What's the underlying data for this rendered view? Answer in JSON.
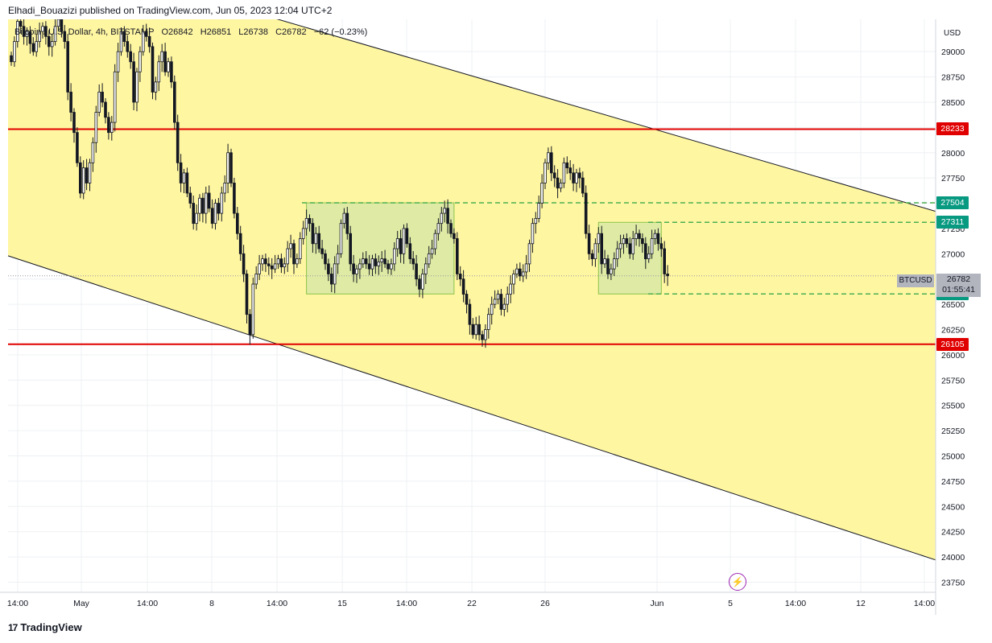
{
  "header": {
    "published_text": "Elhadi_Bouazizi published on TradingView.com, Jun 05, 2023 12:04 UTC+2"
  },
  "legend": {
    "symbol": "Bitcoin / U.S. Dollar, 4h, BITSTAMP",
    "open": "O26842",
    "high": "H26851",
    "low": "L26738",
    "close": "C26782",
    "change": "−62 (−0.23%)"
  },
  "footer": {
    "brand": "TradingView",
    "logo": "tradingview-logo-icon"
  },
  "icons": {
    "alert": "lightning-bolt-icon"
  },
  "colors": {
    "channel_fill": "#fff59d",
    "support_resistance": "#e00000",
    "range_line": "#4caf50",
    "range_box": "#c5e1a5",
    "up_candle": "#131722"
  },
  "chart_data": {
    "type": "candlestick",
    "symbol": "BTCUSD",
    "timeframe": "4h",
    "currency": "USD",
    "ylim": [
      23650,
      29320
    ],
    "y_ticks": [
      23750,
      24000,
      24250,
      24500,
      24750,
      25000,
      25250,
      25500,
      25750,
      26000,
      26250,
      26500,
      26750,
      27000,
      27250,
      27500,
      27750,
      28000,
      28250,
      28500,
      28750,
      29000
    ],
    "x_ticks": [
      "14:00",
      "May",
      "14:00",
      "8",
      "14:00",
      "15",
      "14:00",
      "22",
      "26",
      "Jun",
      "5",
      "14:00",
      "12",
      "14:00"
    ],
    "horizontal_levels": [
      {
        "price": 28233,
        "label": "28233",
        "style": "solid",
        "color": "red"
      },
      {
        "price": 26105,
        "label": "26105",
        "style": "solid",
        "color": "red"
      },
      {
        "price": 27504,
        "label": "27504",
        "style": "dashed",
        "color": "green"
      },
      {
        "price": 27311,
        "label": "27311",
        "style": "dashed",
        "color": "green"
      },
      {
        "price": 26602,
        "label": "26602",
        "style": "dashed",
        "color": "green"
      }
    ],
    "last_price": {
      "symbol_label": "BTCUSD",
      "price": "26782",
      "countdown": "01:55:41"
    },
    "channel": {
      "upper_start": 30100,
      "upper_end": 27420,
      "lower_start": 26980,
      "lower_end": 23970
    },
    "consolidation_boxes": [
      {
        "from_index": 94,
        "to_index": 141,
        "low": 26602,
        "high": 27504
      },
      {
        "from_index": 187,
        "to_index": 207,
        "low": 26602,
        "high": 27311
      }
    ],
    "closes": [
      28900,
      29100,
      29300,
      29250,
      29150,
      29200,
      29080,
      29000,
      29100,
      29200,
      29250,
      29150,
      29050,
      29100,
      29250,
      29320,
      29200,
      29100,
      28600,
      28400,
      28200,
      27900,
      27600,
      27850,
      27700,
      27900,
      28100,
      28400,
      28600,
      28500,
      28350,
      28200,
      28300,
      28800,
      29000,
      29200,
      29100,
      29000,
      28900,
      28500,
      28800,
      29000,
      29200,
      29150,
      29050,
      28600,
      28700,
      28900,
      29000,
      28800,
      28900,
      28700,
      28300,
      27900,
      27700,
      27800,
      27600,
      27500,
      27300,
      27400,
      27550,
      27400,
      27600,
      27450,
      27300,
      27500,
      27400,
      27600,
      27700,
      28000,
      27700,
      27400,
      27200,
      27000,
      26800,
      26400,
      26200,
      26700,
      26800,
      26900,
      26950,
      26900,
      26880,
      26850,
      26900,
      26950,
      26870,
      26900,
      27050,
      27100,
      26900,
      26950,
      27150,
      27250,
      27350,
      27300,
      27100,
      27200,
      27050,
      27000,
      26900,
      26800,
      26700,
      26900,
      27000,
      27300,
      27400,
      27200,
      26900,
      26800,
      26850,
      26900,
      26950,
      26900,
      26850,
      26950,
      26880,
      26920,
      26950,
      26900,
      26850,
      26900,
      27050,
      27150,
      27000,
      27250,
      27100,
      26950,
      26900,
      26750,
      26650,
      26800,
      26900,
      27000,
      27050,
      27200,
      27300,
      27400,
      27450,
      27300,
      27200,
      27150,
      26800,
      26750,
      26600,
      26500,
      26300,
      26200,
      26300,
      26200,
      26150,
      26250,
      26400,
      26500,
      26550,
      26600,
      26450,
      26500,
      26600,
      26700,
      26800,
      26850,
      26780,
      26820,
      26900,
      27100,
      27300,
      27350,
      27500,
      27700,
      27900,
      28000,
      27800,
      27750,
      27650,
      27700,
      27900,
      27850,
      27800,
      27700,
      27800,
      27750,
      27600,
      27200,
      27000,
      26950,
      27100,
      27200,
      26900,
      26950,
      26800,
      26850,
      26950,
      27050,
      27100,
      27150,
      27100,
      27000,
      27150,
      27200,
      27150,
      27100,
      26950,
      27000,
      27150,
      27200,
      27100,
      27050,
      26800,
      26782
    ]
  }
}
